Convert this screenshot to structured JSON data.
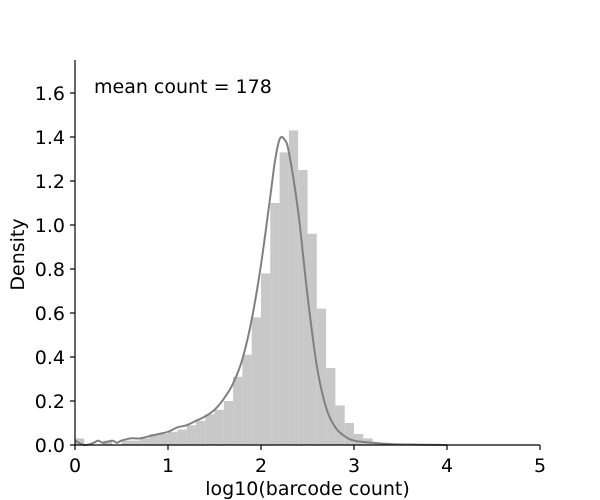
{
  "chart_data": {
    "type": "histogram",
    "xlabel": "log10(barcode count)",
    "ylabel": "Density",
    "annotation": "mean count = 178",
    "xlim": [
      0,
      5
    ],
    "ylim": [
      0,
      1.75
    ],
    "xticks": [
      0,
      1,
      2,
      3,
      4,
      5
    ],
    "xtick_labels": [
      "0",
      "1",
      "2",
      "3",
      "4",
      "5"
    ],
    "yticks": [
      0.0,
      0.2,
      0.4,
      0.6,
      0.8,
      1.0,
      1.2,
      1.4,
      1.6
    ],
    "ytick_labels": [
      "0.0",
      "0.2",
      "0.4",
      "0.6",
      "0.8",
      "1.0",
      "1.2",
      "1.4",
      "1.6"
    ],
    "grid": false,
    "bin_edges": [
      0.0,
      0.1,
      0.2,
      0.3,
      0.4,
      0.5,
      0.6,
      0.7,
      0.8,
      0.9,
      1.0,
      1.1,
      1.2,
      1.3,
      1.4,
      1.5,
      1.6,
      1.7,
      1.8,
      1.9,
      2.0,
      2.1,
      2.2,
      2.3,
      2.4,
      2.5,
      2.6,
      2.7,
      2.8,
      2.9,
      3.0,
      3.1,
      3.2,
      3.3,
      3.4,
      3.5,
      3.6,
      3.7,
      3.8,
      3.9,
      4.0
    ],
    "bin_densities": [
      0.03,
      0.0,
      0.0,
      0.02,
      0.0,
      0.02,
      0.02,
      0.03,
      0.05,
      0.05,
      0.06,
      0.07,
      0.09,
      0.11,
      0.14,
      0.16,
      0.2,
      0.31,
      0.41,
      0.58,
      0.78,
      1.1,
      1.33,
      1.43,
      1.25,
      0.96,
      0.62,
      0.35,
      0.18,
      0.1,
      0.05,
      0.03,
      0.01,
      0.01,
      0.0,
      0.0,
      0.0,
      0.0,
      0.0,
      0.0
    ],
    "kde": {
      "x": [
        0.0,
        0.1,
        0.2,
        0.25,
        0.3,
        0.4,
        0.45,
        0.5,
        0.6,
        0.7,
        0.8,
        0.9,
        1.0,
        1.1,
        1.2,
        1.3,
        1.4,
        1.5,
        1.6,
        1.7,
        1.8,
        1.9,
        2.0,
        2.1,
        2.15,
        2.2,
        2.25,
        2.3,
        2.4,
        2.5,
        2.6,
        2.7,
        2.8,
        2.9,
        3.0,
        3.2,
        3.4,
        3.6,
        3.8,
        4.0
      ],
      "y": [
        0.02,
        0.0,
        0.01,
        0.02,
        0.01,
        0.02,
        0.01,
        0.02,
        0.03,
        0.03,
        0.04,
        0.05,
        0.06,
        0.08,
        0.09,
        0.11,
        0.13,
        0.16,
        0.21,
        0.28,
        0.39,
        0.57,
        0.82,
        1.13,
        1.29,
        1.39,
        1.39,
        1.33,
        1.06,
        0.68,
        0.36,
        0.17,
        0.08,
        0.04,
        0.02,
        0.01,
        0.004,
        0.002,
        0.001,
        0.0
      ]
    },
    "colors": {
      "bars": "#c8c8c8",
      "kde_line": "#808080",
      "axis": "#000000"
    }
  }
}
